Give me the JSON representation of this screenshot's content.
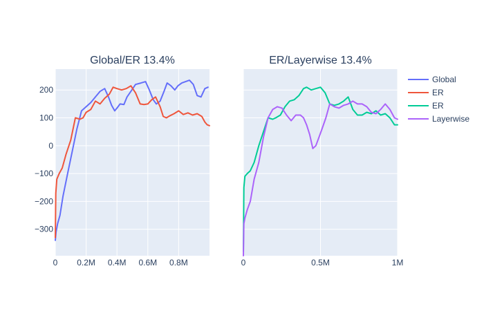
{
  "colors": {
    "global": "#636efa",
    "er_left": "#ef553b",
    "er_right": "#00cc96",
    "layerwise": "#ab63fa",
    "plot_bg": "#e5ecf6",
    "grid": "#ffffff",
    "text": "#2a3f5f"
  },
  "legend": {
    "entries": [
      {
        "name": "Global",
        "color": "#636efa"
      },
      {
        "name": "ER",
        "color": "#ef553b"
      },
      {
        "name": "ER",
        "color": "#00cc96"
      },
      {
        "name": "Layerwise",
        "color": "#ab63fa"
      }
    ]
  },
  "chart_data": [
    {
      "type": "line",
      "title": "Global/ER 13.4%",
      "xlabel": "",
      "ylabel": "",
      "xlim": [
        0,
        1000000
      ],
      "ylim": [
        -395,
        275
      ],
      "x_ticks": [
        0,
        200000,
        400000,
        600000,
        800000
      ],
      "x_tick_labels": [
        "0",
        "0.2M",
        "0.4M",
        "0.6M",
        "0.8M"
      ],
      "y_ticks": [
        -300,
        -200,
        -100,
        0,
        100,
        200
      ],
      "y_tick_labels": [
        "−300",
        "−200",
        "−100",
        "0",
        "100",
        "200"
      ],
      "grid": true,
      "series": [
        {
          "name": "Global",
          "color": "#636efa",
          "x": [
            0,
            5000,
            15000,
            30000,
            50000,
            80000,
            110000,
            140000,
            170000,
            200000,
            230000,
            260000,
            290000,
            320000,
            345000,
            365000,
            385000,
            400000,
            420000,
            445000,
            465000,
            490000,
            520000,
            555000,
            585000,
            610000,
            635000,
            655000,
            680000,
            705000,
            725000,
            750000,
            775000,
            795000,
            820000,
            845000,
            870000,
            895000,
            920000,
            945000,
            970000,
            990000
          ],
          "y": [
            -340,
            -310,
            -280,
            -250,
            -180,
            -100,
            -20,
            60,
            125,
            140,
            155,
            175,
            195,
            205,
            175,
            145,
            125,
            135,
            150,
            148,
            175,
            195,
            220,
            225,
            230,
            200,
            165,
            150,
            160,
            195,
            225,
            215,
            200,
            215,
            225,
            230,
            235,
            220,
            180,
            175,
            205,
            210
          ]
        },
        {
          "name": "ER",
          "color": "#ef553b",
          "x": [
            0,
            3000,
            10000,
            25000,
            45000,
            70000,
            100000,
            130000,
            160000,
            180000,
            200000,
            230000,
            260000,
            290000,
            320000,
            350000,
            375000,
            400000,
            430000,
            460000,
            490000,
            520000,
            550000,
            575000,
            600000,
            625000,
            650000,
            680000,
            700000,
            720000,
            745000,
            770000,
            800000,
            830000,
            860000,
            890000,
            920000,
            950000,
            970000,
            985000,
            1000000
          ],
          "y": [
            -330,
            -170,
            -120,
            -100,
            -80,
            -30,
            20,
            100,
            95,
            100,
            120,
            130,
            160,
            150,
            170,
            185,
            210,
            205,
            200,
            205,
            215,
            190,
            150,
            148,
            150,
            165,
            175,
            140,
            105,
            100,
            108,
            115,
            125,
            112,
            118,
            110,
            115,
            105,
            85,
            75,
            72
          ]
        }
      ]
    },
    {
      "type": "line",
      "title": "ER/Layerwise 13.4%",
      "xlabel": "",
      "ylabel": "",
      "xlim": [
        0,
        1000000
      ],
      "ylim": [
        -395,
        275
      ],
      "x_ticks": [
        0,
        500000,
        1000000
      ],
      "x_tick_labels": [
        "0",
        "0.5M",
        "1M"
      ],
      "y_ticks": [
        -300,
        -200,
        -100,
        0,
        100,
        200
      ],
      "y_tick_labels": [
        "",
        "",
        "",
        "",
        "",
        ""
      ],
      "grid": true,
      "series": [
        {
          "name": "ER",
          "color": "#00cc96",
          "x": [
            0,
            3000,
            10000,
            25000,
            45000,
            70000,
            100000,
            130000,
            160000,
            190000,
            210000,
            240000,
            270000,
            300000,
            330000,
            360000,
            390000,
            410000,
            440000,
            470000,
            500000,
            530000,
            560000,
            590000,
            620000,
            650000,
            680000,
            710000,
            740000,
            770000,
            800000,
            830000,
            860000,
            890000,
            920000,
            950000,
            980000,
            1000000
          ],
          "y": [
            -380,
            -150,
            -110,
            -100,
            -90,
            -60,
            0,
            50,
            100,
            95,
            100,
            110,
            140,
            160,
            165,
            180,
            205,
            210,
            200,
            205,
            210,
            190,
            150,
            145,
            150,
            160,
            175,
            130,
            110,
            110,
            120,
            115,
            125,
            110,
            115,
            100,
            75,
            75
          ]
        },
        {
          "name": "Layerwise",
          "color": "#ab63fa",
          "x": [
            0,
            3000,
            10000,
            25000,
            45000,
            70000,
            100000,
            130000,
            160000,
            190000,
            220000,
            250000,
            280000,
            310000,
            340000,
            370000,
            390000,
            410000,
            430000,
            450000,
            470000,
            490000,
            510000,
            535000,
            560000,
            590000,
            620000,
            650000,
            680000,
            710000,
            740000,
            770000,
            800000,
            830000,
            860000,
            890000,
            920000,
            950000,
            980000,
            1000000
          ],
          "y": [
            -395,
            -280,
            -260,
            -230,
            -200,
            -120,
            -60,
            30,
            100,
            130,
            140,
            135,
            110,
            90,
            110,
            110,
            100,
            75,
            40,
            -10,
            0,
            30,
            60,
            100,
            150,
            140,
            135,
            145,
            150,
            160,
            150,
            150,
            140,
            120,
            115,
            130,
            150,
            130,
            100,
            95
          ]
        }
      ]
    }
  ]
}
